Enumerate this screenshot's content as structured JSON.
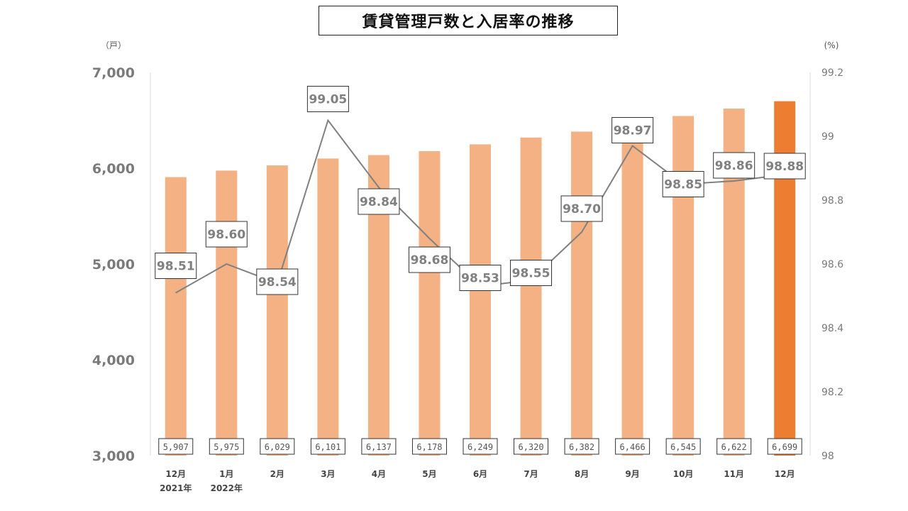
{
  "title": "賃貸管理戸数と入居率の推移",
  "chart_data": {
    "type": "bar",
    "title": "賃貸管理戸数と入居率の推移",
    "categories": [
      [
        "12月",
        "2021年"
      ],
      [
        "1月",
        "2022年"
      ],
      [
        "2月"
      ],
      [
        "3月"
      ],
      [
        "4月"
      ],
      [
        "5月"
      ],
      [
        "6月"
      ],
      [
        "7月"
      ],
      [
        "8月"
      ],
      [
        "9月"
      ],
      [
        "10月"
      ],
      [
        "11月"
      ],
      [
        "12月"
      ]
    ],
    "y_unit": "（戸）",
    "y2_unit": "(%)",
    "ylim": [
      3000,
      7000
    ],
    "yticks": [
      "3,000",
      "4,000",
      "5,000",
      "6,000",
      "7,000"
    ],
    "ytick_values": [
      3000,
      4000,
      5000,
      6000,
      7000
    ],
    "y2lim": [
      98,
      99.2
    ],
    "y2ticks": [
      "98",
      "98.2",
      "98.4",
      "98.6",
      "98.8",
      "99",
      "99.2"
    ],
    "y2tick_values": [
      98,
      98.2,
      98.4,
      98.6,
      98.8,
      99,
      99.2
    ],
    "series": [
      {
        "type": "bar",
        "axis": "left",
        "values": [
          5907,
          5975,
          6029,
          6101,
          6137,
          6178,
          6249,
          6320,
          6382,
          6466,
          6545,
          6622,
          6699
        ],
        "labels": [
          "5,907",
          "5,975",
          "6,029",
          "6,101",
          "6,137",
          "6,178",
          "6,249",
          "6,320",
          "6,382",
          "6,466",
          "6,545",
          "6,622",
          "6,699"
        ]
      },
      {
        "type": "line",
        "axis": "right",
        "values": [
          98.51,
          98.6,
          98.54,
          99.05,
          98.84,
          98.68,
          98.53,
          98.55,
          98.7,
          98.97,
          98.85,
          98.86,
          98.88
        ],
        "labels": [
          "98.51",
          "98.60",
          "98.54",
          "99.05",
          "98.84",
          "98.68",
          "98.53",
          "98.55",
          "98.70",
          "98.97",
          "98.85",
          "98.86",
          "98.88"
        ]
      }
    ],
    "grid": false,
    "colors": {
      "bar": "#f4b183",
      "bar_highlight": "#ed7d31",
      "line": "#808080"
    }
  }
}
